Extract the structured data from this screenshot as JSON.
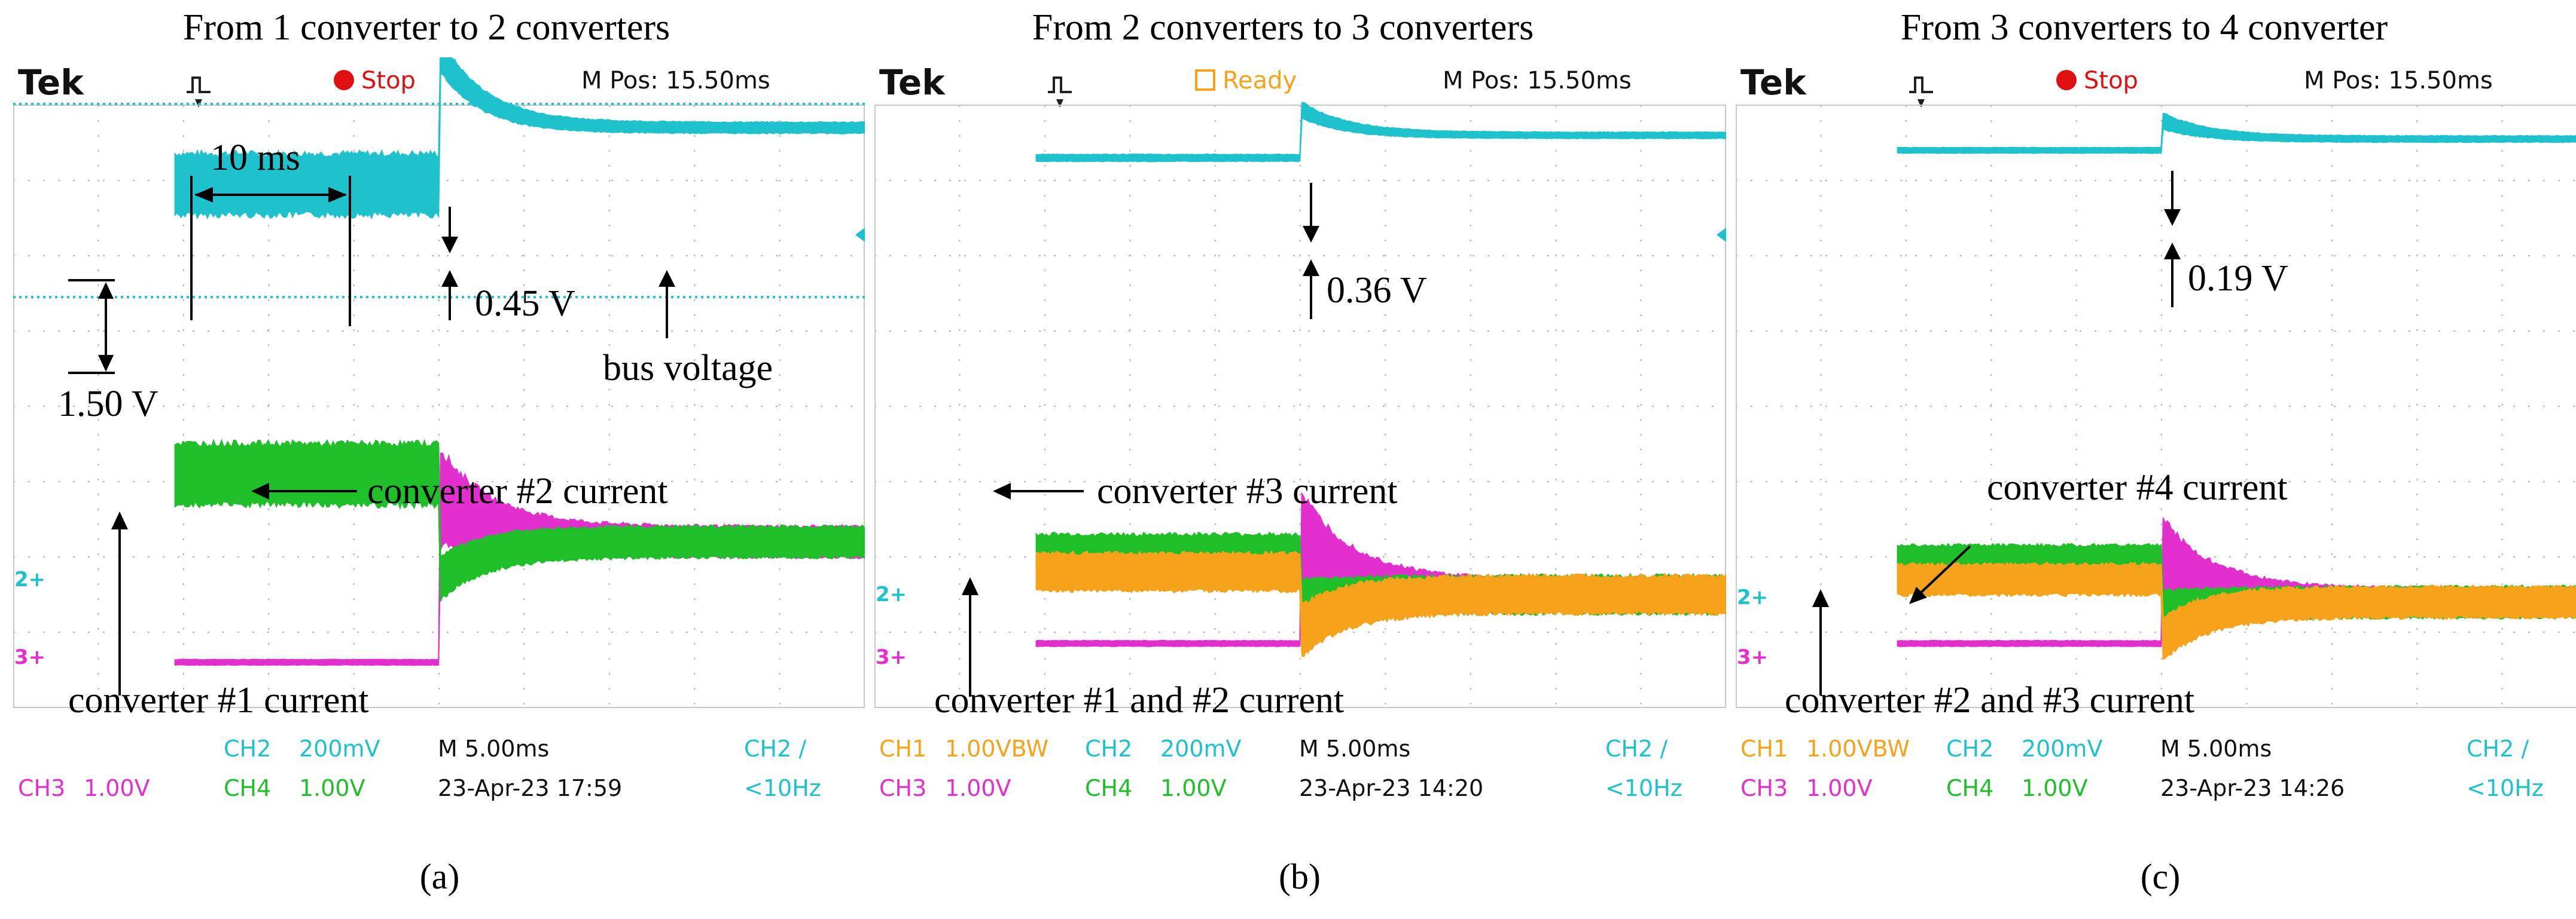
{
  "figure": {
    "panels": [
      {
        "title": "From 1 converter to 2 converters",
        "label": "(a)",
        "header": {
          "brand": "Tek",
          "status": "Stop",
          "mpos": "M Pos: 15.50ms"
        },
        "footer": {
          "row1": [
            "",
            "",
            "CH2",
            "200mV",
            "M 5.00ms",
            "CH2 ∕"
          ],
          "row2": [
            "CH3",
            "1.00V",
            "CH4",
            "1.00V",
            "23-Apr-23 17:59",
            "<10Hz"
          ]
        },
        "markers": {
          "ch2": "2+",
          "ch3": "3+"
        },
        "annotations": {
          "time": "10 ms",
          "ripple": "1.50 V",
          "deviation": "0.45 V",
          "bus": "bus voltage",
          "new_current": "converter #2 current",
          "old_current": "converter #1 current"
        }
      },
      {
        "title": "From 2 converters to 3 converters",
        "label": "(b)",
        "header": {
          "brand": "Tek",
          "status": "Ready",
          "mpos": "M Pos: 15.50ms"
        },
        "footer": {
          "row1": [
            "CH1",
            "1.00VBW",
            "CH2",
            "200mV",
            "M 5.00ms",
            "CH2 ∕"
          ],
          "row2": [
            "CH3",
            "1.00V",
            "CH4",
            "1.00V",
            "23-Apr-23 14:20",
            "<10Hz"
          ]
        },
        "markers": {
          "ch2": "2+",
          "ch3": "3+"
        },
        "annotations": {
          "deviation": "0.36 V",
          "new_current": "converter #3 current",
          "old_current": "converter #1 and #2 current"
        }
      },
      {
        "title": "From 3 converters to 4 converter",
        "label": "(c)",
        "header": {
          "brand": "Tek",
          "status": "Stop",
          "mpos": "M Pos: 15.50ms"
        },
        "footer": {
          "row1": [
            "CH1",
            "1.00VBW",
            "CH2",
            "200mV",
            "M 5.00ms",
            "CH2 ∕"
          ],
          "row2": [
            "CH3",
            "1.00V",
            "CH4",
            "1.00V",
            "23-Apr-23 14:26",
            "<10Hz"
          ]
        },
        "markers": {
          "ch2": "2+",
          "ch3": "3+"
        },
        "annotations": {
          "deviation": "0.19 V",
          "new_current": "converter #4 current",
          "old_current": "converter #2 and #3 current"
        }
      }
    ]
  },
  "colors": {
    "bus_voltage": "#1ec2cc",
    "ch1": "#f7a21b",
    "ch2": "#1ec2cc",
    "ch3": "#e22fce",
    "ch4": "#1fbf2a",
    "stop": "#e01010",
    "ready": "#f7a21b",
    "grid": "#b4b4b4"
  },
  "chart_data": [
    {
      "type": "line",
      "title": "From 1 converter to 2 converters",
      "x_unit": "ms",
      "time_per_div_ms": 5.0,
      "step_time_ms": 0.0,
      "settling_time_ms": 10,
      "series": [
        {
          "name": "bus voltage (CH2)",
          "channel": "CH2",
          "ripple_before_V": 1.5,
          "overshoot_divs": 1.0,
          "deviation_V": 0.45,
          "before_level_divs": 2.95,
          "after_level_divs": 3.7
        },
        {
          "name": "converter #1 current (CH4)",
          "channel": "CH4",
          "before_level_divs": -0.9,
          "before_ripple_divs": 0.9,
          "after_level_divs": -1.8,
          "after_ripple_divs": 0.45
        },
        {
          "name": "converter #2 current (CH3)",
          "channel": "CH3",
          "before_level_divs": -3.4,
          "peak_divs": -0.7,
          "after_level_divs": -1.8,
          "after_ripple_divs": 0.45
        }
      ]
    },
    {
      "type": "line",
      "title": "From 2 converters to 3 converters",
      "x_unit": "ms",
      "time_per_div_ms": 5.0,
      "step_time_ms": 0.0,
      "series": [
        {
          "name": "bus voltage (CH2)",
          "channel": "CH2",
          "ripple_before_divs": 0.1,
          "overshoot_divs": 0.35,
          "deviation_V": 0.36,
          "before_level_divs": 3.3,
          "after_level_divs": 3.6
        },
        {
          "name": "converter #1 and #2 current (CH1/CH4)",
          "channel": "CH1",
          "before_level_divs": -2.2,
          "before_ripple_divs": 0.55,
          "after_level_divs": -2.5,
          "after_ripple_divs": 0.55
        },
        {
          "name": "converter #3 current (CH3)",
          "channel": "CH3",
          "before_level_divs": -3.15,
          "peak_divs": -1.2,
          "after_level_divs": -2.5,
          "after_ripple_divs": 0.45
        }
      ]
    },
    {
      "type": "line",
      "title": "From 3 converters to 4 converter",
      "x_unit": "ms",
      "time_per_div_ms": 5.0,
      "step_time_ms": 0.0,
      "series": [
        {
          "name": "bus voltage (CH2)",
          "channel": "CH2",
          "ripple_before_divs": 0.08,
          "overshoot_divs": 0.25,
          "deviation_V": 0.19,
          "before_level_divs": 3.4,
          "after_level_divs": 3.55
        },
        {
          "name": "converter #2 and #3 current (CH1/CH4)",
          "channel": "CH1",
          "before_level_divs": -2.3,
          "before_ripple_divs": 0.45,
          "after_level_divs": -2.6,
          "after_ripple_divs": 0.45
        },
        {
          "name": "converter #4 current (CH3)",
          "channel": "CH3",
          "before_level_divs": -3.15,
          "peak_divs": -1.7,
          "after_level_divs": -2.6,
          "after_ripple_divs": 0.4
        }
      ]
    }
  ]
}
